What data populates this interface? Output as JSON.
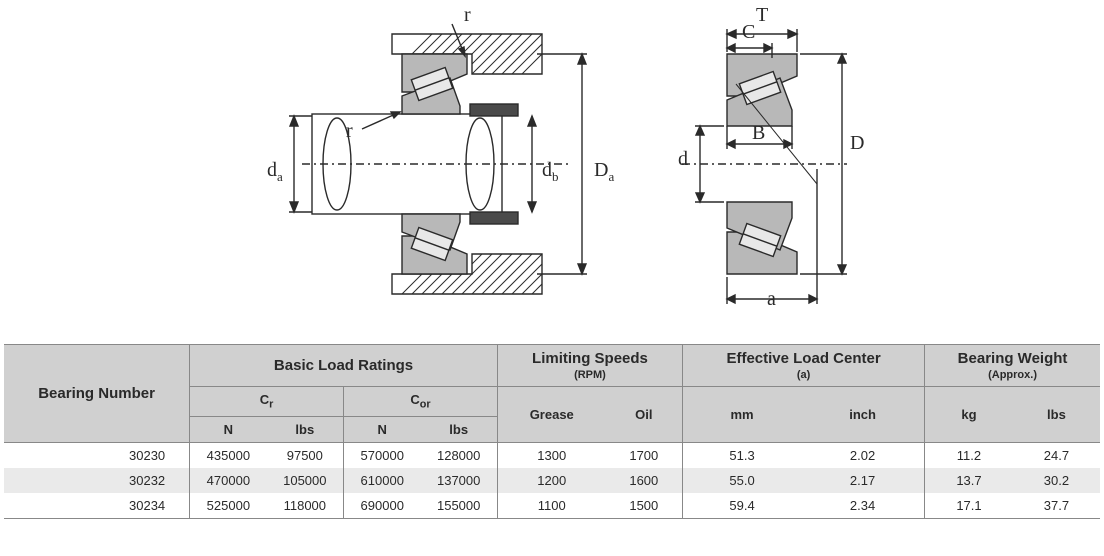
{
  "diagram": {
    "labels": {
      "da_left": "d<sub>a</sub>",
      "r_upper": "r",
      "r_lower": "r",
      "db": "d<sub>b</sub>",
      "Da": "D<sub>a</sub>",
      "T": "T",
      "C": "C",
      "d_small": "d",
      "B": "B",
      "D": "D",
      "a": "a"
    },
    "colors": {
      "stroke": "#2a2a2a",
      "fill_light": "#c8c8c8",
      "fill_dark": "#555555",
      "background": "#ffffff",
      "stroke_width": 1.4
    }
  },
  "table": {
    "headers": {
      "bearing_number": "Bearing Number",
      "basic_load": "Basic Load Ratings",
      "limiting_speeds": "Limiting Speeds",
      "limiting_speeds_note": "(RPM)",
      "eff_load_center": "Effective Load Center",
      "eff_load_center_note": "(a)",
      "bearing_weight": "Bearing Weight",
      "bearing_weight_note": "(Approx.)",
      "Cr": "C<sub>r</sub>",
      "Cor": "C<sub>or</sub>",
      "N": "N",
      "lbs": "lbs",
      "grease": "Grease",
      "oil": "Oil",
      "mm": "mm",
      "inch": "inch",
      "kg": "kg",
      "lbs2": "lbs"
    },
    "rows": [
      {
        "bn": "30230",
        "cr_n": "435000",
        "cr_lbs": "97500",
        "cor_n": "570000",
        "cor_lbs": "128000",
        "grease": "1300",
        "oil": "1700",
        "mm": "51.3",
        "in": "2.02",
        "kg": "11.2",
        "lbs": "24.7"
      },
      {
        "bn": "30232",
        "cr_n": "470000",
        "cr_lbs": "105000",
        "cor_n": "610000",
        "cor_lbs": "137000",
        "grease": "1200",
        "oil": "1600",
        "mm": "55.0",
        "in": "2.17",
        "kg": "13.7",
        "lbs": "30.2"
      },
      {
        "bn": "30234",
        "cr_n": "525000",
        "cr_lbs": "118000",
        "cor_n": "690000",
        "cor_lbs": "155000",
        "grease": "1100",
        "oil": "1500",
        "mm": "59.4",
        "in": "2.34",
        "kg": "17.1",
        "lbs": "37.7"
      }
    ]
  }
}
